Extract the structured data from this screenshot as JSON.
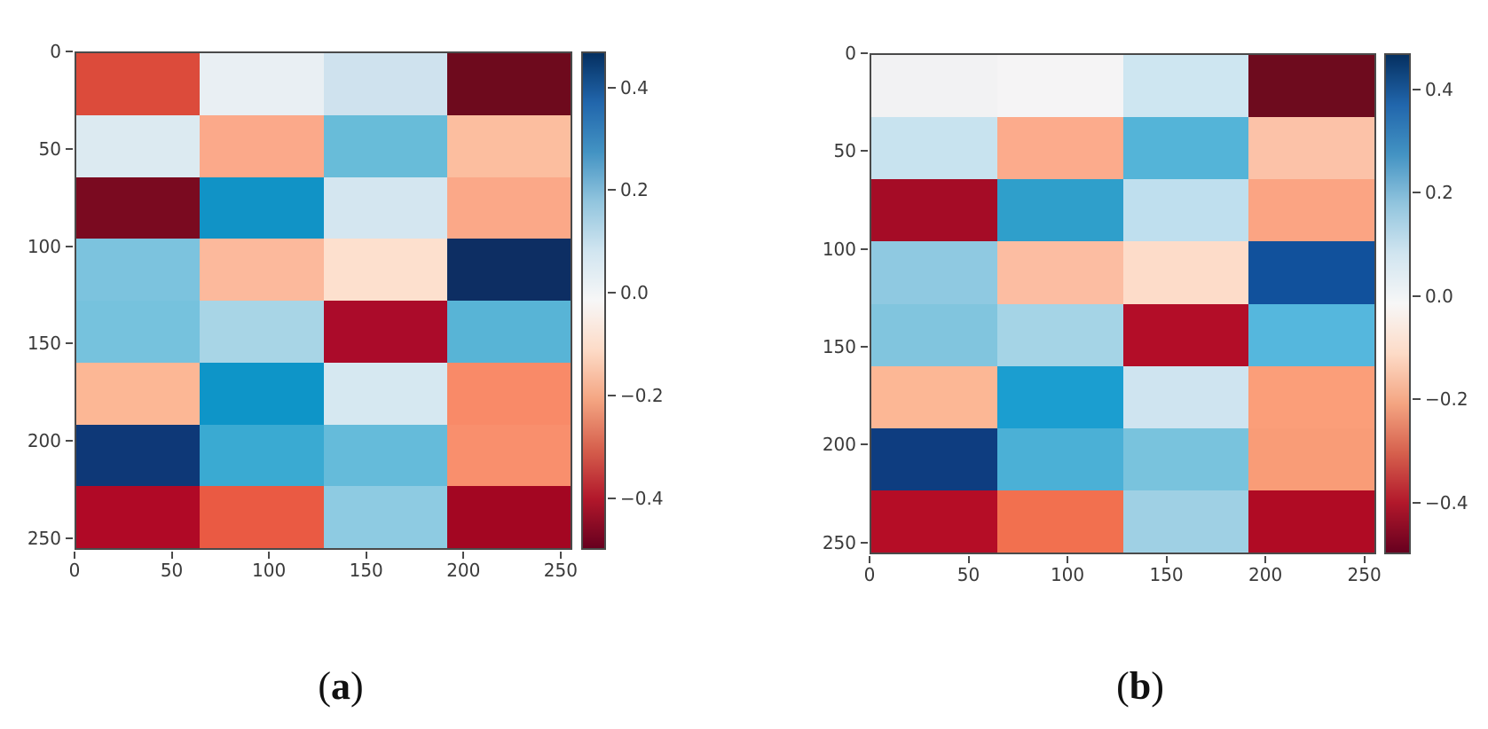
{
  "figure": {
    "background": "#ffffff"
  },
  "chart_data": [
    {
      "type": "heatmap",
      "label": "(a)",
      "caption": {
        "open": "(",
        "letter": "a",
        "close": ")"
      },
      "n_rows": 8,
      "n_cols": 4,
      "axis_extent": [
        0,
        256
      ],
      "x_ticks": [
        0,
        50,
        100,
        150,
        200,
        250
      ],
      "y_ticks": [
        0,
        50,
        100,
        150,
        200,
        250
      ],
      "colormap": "RdBu",
      "grid": false,
      "colorbar": {
        "position": "right",
        "tick_labels": [
          "0.4",
          "0.2",
          "0.0",
          "−0.2",
          "−0.4"
        ],
        "tick_values": [
          0.4,
          0.2,
          0.0,
          -0.2,
          -0.4
        ],
        "vmax": 0.47,
        "vmin": -0.5,
        "gradient": [
          "#053061",
          "#2166ac",
          "#4393c3",
          "#92c5de",
          "#d1e5f0",
          "#f7f7f7",
          "#fddbc7",
          "#f4a582",
          "#d6604d",
          "#b2182b",
          "#67001f"
        ]
      },
      "values_approx": [
        [
          -0.33,
          0.03,
          0.1,
          -0.48
        ],
        [
          0.06,
          -0.21,
          0.24,
          -0.16
        ],
        [
          -0.47,
          0.32,
          0.08,
          -0.21
        ],
        [
          0.21,
          -0.17,
          -0.08,
          0.46
        ],
        [
          0.2,
          0.14,
          -0.43,
          0.26
        ],
        [
          -0.18,
          0.31,
          0.07,
          -0.28
        ],
        [
          0.44,
          0.28,
          0.24,
          -0.27
        ],
        [
          -0.42,
          -0.31,
          0.17,
          -0.44
        ]
      ],
      "cell_colors": [
        [
          "#dc4b3b",
          "#e9eff3",
          "#cfe2ee",
          "#6e0a1d"
        ],
        [
          "#dceaf1",
          "#fba98a",
          "#68bcd9",
          "#fcbe9f"
        ],
        [
          "#7a0a20",
          "#1193c6",
          "#d4e6f0",
          "#fba888"
        ],
        [
          "#7cc3de",
          "#fcb99c",
          "#fde0ce",
          "#0d2e63"
        ],
        [
          "#76c2dd",
          "#a8d5e6",
          "#ab0b2a",
          "#58b4d6"
        ],
        [
          "#fcb795",
          "#0e95c8",
          "#d6e8f1",
          "#f98a68"
        ],
        [
          "#0e3877",
          "#3aaad2",
          "#65bbda",
          "#f98f6d"
        ],
        [
          "#b00926",
          "#ea5a43",
          "#8ecbe2",
          "#a30622"
        ]
      ]
    },
    {
      "type": "heatmap",
      "label": "(b)",
      "caption": {
        "open": "(",
        "letter": "b",
        "close": ")"
      },
      "n_rows": 8,
      "n_cols": 4,
      "axis_extent": [
        0,
        256
      ],
      "x_ticks": [
        0,
        50,
        100,
        150,
        200,
        250
      ],
      "y_ticks": [
        0,
        50,
        100,
        150,
        200,
        250
      ],
      "colormap": "RdBu",
      "grid": false,
      "colorbar": {
        "position": "right",
        "tick_labels": [
          "0.4",
          "0.2",
          "0.0",
          "−0.2",
          "−0.4"
        ],
        "tick_values": [
          0.4,
          0.2,
          0.0,
          -0.2,
          -0.4
        ],
        "vmax": 0.47,
        "vmin": -0.5,
        "gradient": [
          "#053061",
          "#2166ac",
          "#4393c3",
          "#92c5de",
          "#d1e5f0",
          "#f7f7f7",
          "#fddbc7",
          "#f4a582",
          "#d6604d",
          "#b2182b",
          "#67001f"
        ]
      },
      "values_approx": [
        [
          0.01,
          0.0,
          0.1,
          -0.48
        ],
        [
          0.11,
          -0.2,
          0.26,
          -0.14
        ],
        [
          -0.44,
          0.3,
          0.13,
          -0.22
        ],
        [
          0.18,
          -0.16,
          -0.09,
          0.41
        ],
        [
          0.19,
          0.14,
          -0.43,
          0.25
        ],
        [
          -0.18,
          0.3,
          0.09,
          -0.23
        ],
        [
          0.43,
          0.26,
          0.21,
          -0.23
        ],
        [
          -0.42,
          -0.3,
          0.16,
          -0.43
        ]
      ],
      "cell_colors": [
        [
          "#f2f2f3",
          "#f5f4f5",
          "#cee6f1",
          "#6e0b1e"
        ],
        [
          "#c8e3ef",
          "#fcab8c",
          "#54b4d8",
          "#fcc2a8"
        ],
        [
          "#a50c26",
          "#2f9fcb",
          "#bfdfee",
          "#fba483"
        ],
        [
          "#8fc9e1",
          "#fcbda2",
          "#fddcc9",
          "#11519c"
        ],
        [
          "#81c5de",
          "#a5d4e6",
          "#b30d28",
          "#55b7dd"
        ],
        [
          "#fcb795",
          "#1b9ed0",
          "#cfe4f0",
          "#fb9e79"
        ],
        [
          "#0e3d80",
          "#4bb0d6",
          "#79c3dd",
          "#f99c77"
        ],
        [
          "#b50d26",
          "#f2704f",
          "#9fd0e4",
          "#b00b24"
        ]
      ]
    }
  ]
}
